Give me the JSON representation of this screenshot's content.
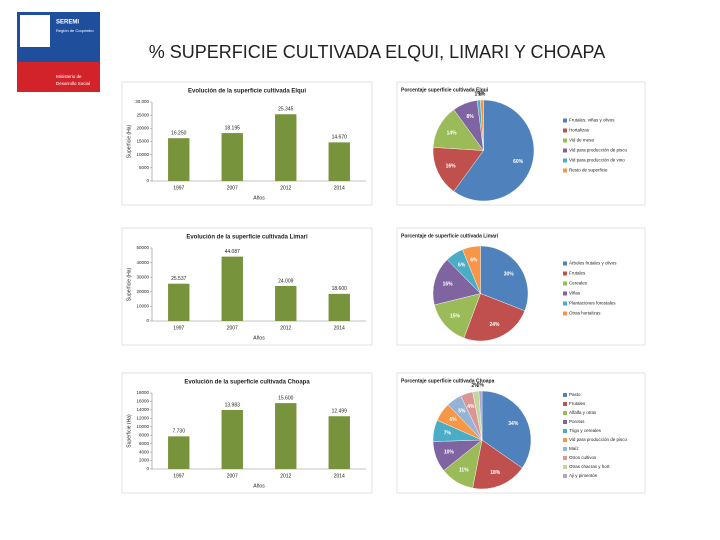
{
  "slide": {
    "title": "% SUPERFICIE CULTIVADA ELQUI, LIMARI Y CHOAPA",
    "logo": [
      "SEREMI",
      "Región de Coquimbo",
      "Ministerio de",
      "Desarrollo Social"
    ]
  },
  "chart_data": [
    {
      "type": "bar",
      "title": "Evolución de la superficie cultivada Elqui",
      "x_label": "Años",
      "y_label": "Superficie (Ha)",
      "categories": [
        "1997",
        "2007",
        "2012",
        "2014"
      ],
      "values": [
        16250,
        18195,
        25345,
        14670
      ],
      "value_labels": [
        "16.250",
        "18.195",
        "25.345",
        "14.670"
      ],
      "color": "#77933c",
      "ylim": [
        0,
        30000
      ],
      "yticks": [
        0,
        5000,
        10000,
        15000,
        20000,
        25000,
        {
          "value": 30000,
          "label": "30.000"
        }
      ]
    },
    {
      "type": "pie",
      "title": "Porcentaje superficie cultivada Elqui",
      "categories": [
        "Frutales, viñas y olivos",
        "Hortalizas",
        "Vid de mesa",
        "Vid para producción de pisco",
        "Vid para producción de vino",
        "Resto de superficie"
      ],
      "values": [
        60,
        16,
        14,
        8,
        1,
        1
      ],
      "value_labels": [
        "60%",
        "16%",
        "14%",
        "8%",
        "1%",
        "1%"
      ],
      "colors": [
        "#4f81bd",
        "#c0504d",
        "#9bbb59",
        "#8064a2",
        "#4bacc6",
        "#f79646"
      ]
    },
    {
      "type": "bar",
      "title": "Evolución de la superficie cultivada Limari",
      "x_label": "Años",
      "y_label": "Superficie (Ha)",
      "categories": [
        "1997",
        "2007",
        "2012",
        "2014"
      ],
      "values": [
        25537,
        44087,
        24009,
        18600
      ],
      "value_labels": [
        "25.537",
        "44.087",
        "24.009",
        "18.600"
      ],
      "color": "#77933c",
      "ylim": [
        0,
        50000
      ],
      "yticks": [
        0,
        10000,
        20000,
        30000,
        40000,
        50000
      ]
    },
    {
      "type": "pie",
      "title": "Porcentaje de superficie cultivada Limarí",
      "categories": [
        "Árboles frutales y olivos",
        "Frutales",
        "Cereales",
        "Viñas",
        "Plantaciones forestales",
        "Otras hortalizas"
      ],
      "values": [
        30,
        24,
        15,
        16,
        6,
        6
      ],
      "value_labels": [
        "30%",
        "24%",
        "15%",
        "16%",
        "6%",
        "6%"
      ],
      "colors": [
        "#4f81bd",
        "#c0504d",
        "#9bbb59",
        "#8064a2",
        "#4bacc6",
        "#f79646"
      ]
    },
    {
      "type": "bar",
      "title": "Evolución de la superficie cultivada Choapa",
      "x_label": "Años",
      "y_label": "Superficie (Ha)",
      "categories": [
        "1997",
        "2007",
        "2012",
        "2014"
      ],
      "values": [
        7730,
        13983,
        15600,
        12499
      ],
      "value_labels": [
        "7.730",
        "13.983",
        "15.600",
        "12.499"
      ],
      "color": "#77933c",
      "ylim": [
        0,
        18000
      ],
      "yticks": [
        0,
        2000,
        4000,
        6000,
        8000,
        10000,
        12000,
        14000,
        16000,
        18000
      ]
    },
    {
      "type": "pie",
      "title": "Porcentaje superficie cultivada Choapa",
      "categories": [
        "Pasto",
        "Frutales",
        "Alfalfa y otras",
        "Porotos",
        "Trigo y cereales",
        "Vid para producción de pisco",
        "Maíz",
        "Otros cultivos",
        "Otras chacras y hort",
        "Aji y pimentón"
      ],
      "values": [
        34,
        18,
        11,
        10,
        7,
        6,
        5,
        4,
        2,
        1
      ],
      "value_labels": [
        "34%",
        "18%",
        "11%",
        "10%",
        "7%",
        "6%",
        "5%",
        "4%",
        "2%",
        "1%"
      ],
      "colors": [
        "#4f81bd",
        "#c0504d",
        "#9bbb59",
        "#8064a2",
        "#4bacc6",
        "#f79646",
        "#95b3d7",
        "#d99694",
        "#c3d69b",
        "#b3a2c7"
      ]
    }
  ]
}
